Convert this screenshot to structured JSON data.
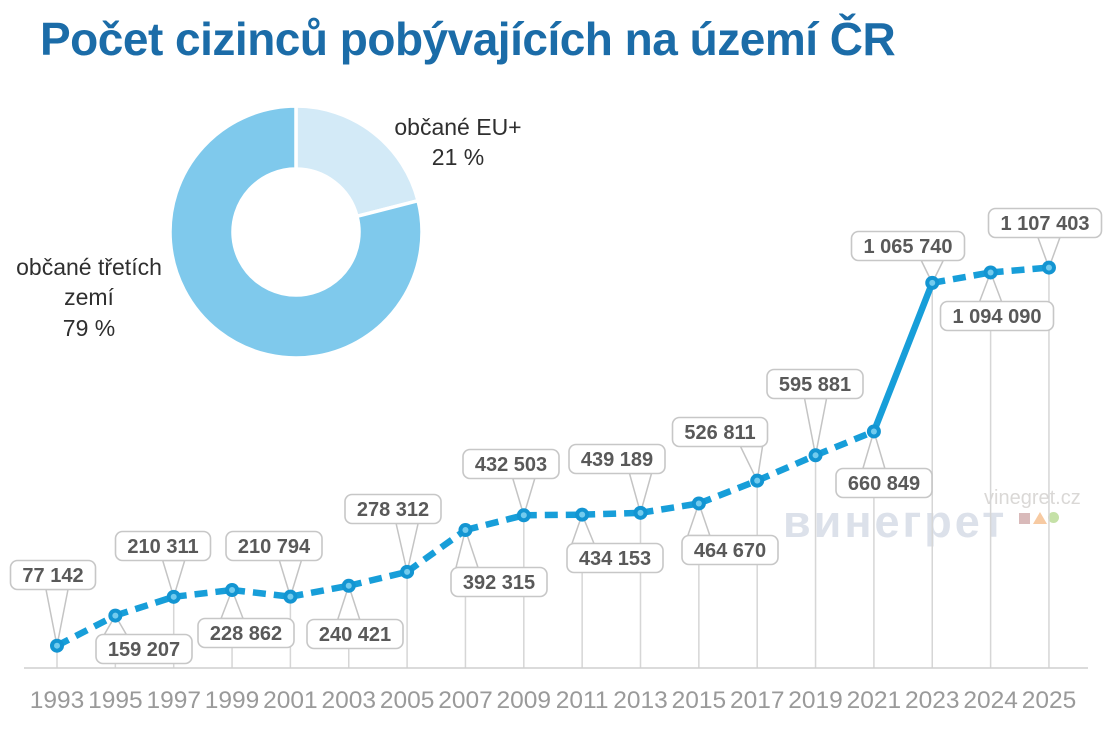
{
  "title": "Počet cizinců pobývajících na území ČR",
  "watermark": {
    "brand": "винегрет",
    "site": "vinegret.cz"
  },
  "colors": {
    "title": "#1b6ca8",
    "line": "#179ed9",
    "dot_outer": "#1395d2",
    "dot_inner": "#72cbee",
    "donut_eu": "#d3eaf7",
    "donut_main": "#7fc9ec",
    "callout_text": "#595959",
    "callout_border": "#c7c7c7",
    "grid": "#d6d6d6",
    "tail": "#c4c4c4",
    "axis": "#cfcfcf",
    "year_text": "#9a9a9a"
  },
  "chart_data": [
    {
      "type": "pie",
      "donut": true,
      "start_angle_deg": -90,
      "direction": "clockwise",
      "legend_position": "beside-slices",
      "slices": [
        {
          "label": "občané EU+",
          "value": 21,
          "value_label": "21 %",
          "color_key": "donut_eu"
        },
        {
          "label": "občané třetích zemí",
          "value": 79,
          "value_label": "79 %",
          "color_key": "donut_main"
        }
      ]
    },
    {
      "type": "line",
      "title": "",
      "xlabel": "",
      "ylabel": "",
      "ylim": [
        0,
        1200000
      ],
      "grid": "vertical-droplines",
      "line_style": "dashed",
      "legend": "none",
      "categories": [
        "1993",
        "1995",
        "1997",
        "1999",
        "2001",
        "2003",
        "2005",
        "2007",
        "2009",
        "2011",
        "2013",
        "2015",
        "2017",
        "2019",
        "2021",
        "2023",
        "2024",
        "2025"
      ],
      "values": [
        77142,
        159207,
        210311,
        228862,
        210794,
        240421,
        278312,
        392315,
        432503,
        434153,
        439189,
        464670,
        526811,
        595881,
        660849,
        1065740,
        1094090,
        1107403
      ],
      "point_labels": [
        "77 142",
        "159 207",
        "210 311",
        "228 862",
        "210 794",
        "240 421",
        "278 312",
        "392 315",
        "432 503",
        "434 153",
        "439 189",
        "464 670",
        "526 811",
        "595 881",
        "660 849",
        "1 065 740",
        "1 094 090",
        "1 107 403"
      ]
    }
  ]
}
